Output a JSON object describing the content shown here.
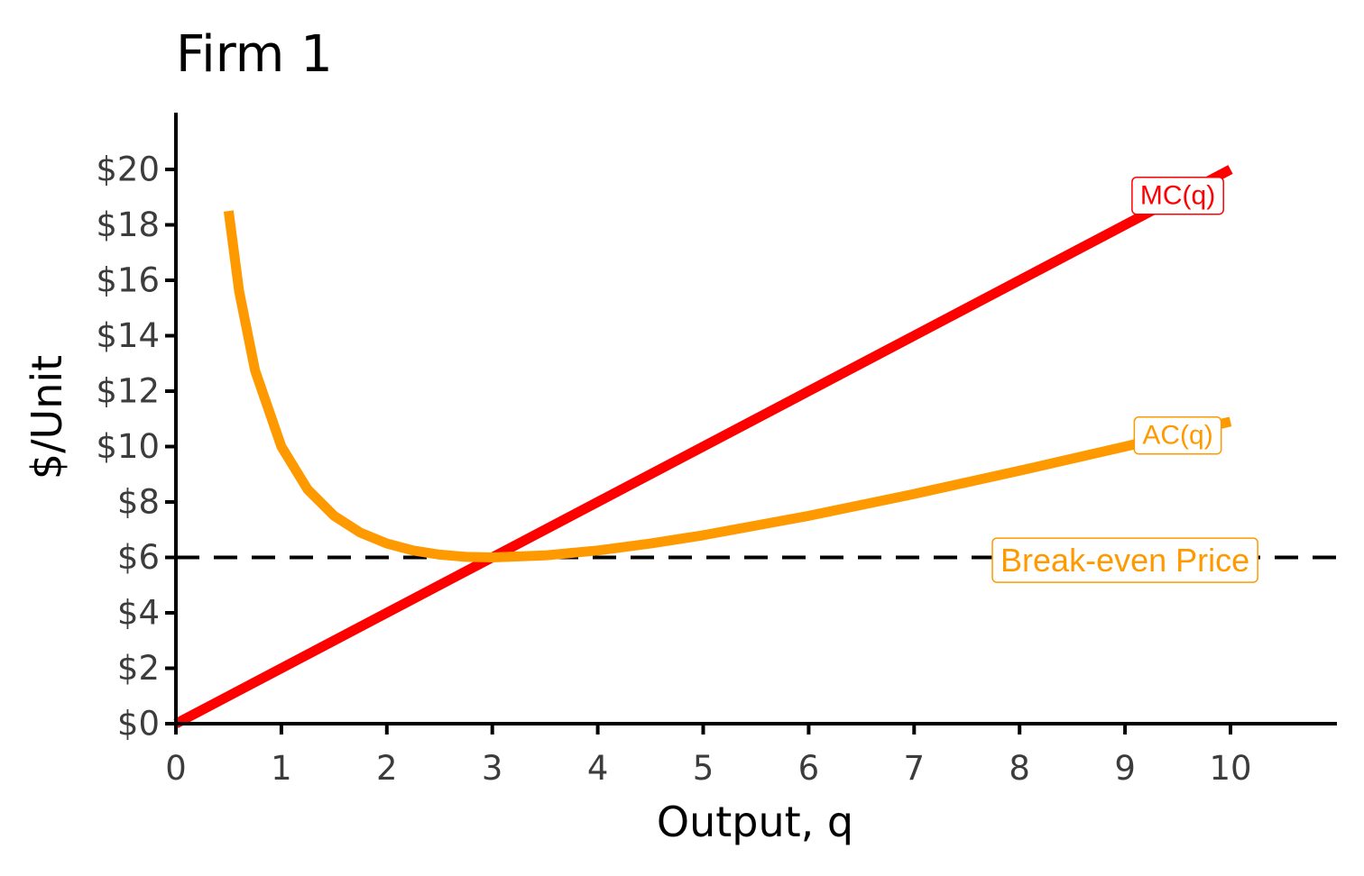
{
  "chart_data": {
    "type": "line",
    "title": "Firm 1",
    "xlabel": "Output, q",
    "ylabel": "$/Unit",
    "xlim": [
      0,
      11
    ],
    "ylim": [
      0,
      22
    ],
    "x_ticks": [
      0,
      1,
      2,
      3,
      4,
      5,
      6,
      7,
      8,
      9,
      10
    ],
    "x_tick_labels": [
      "0",
      "1",
      "2",
      "3",
      "4",
      "5",
      "6",
      "7",
      "8",
      "9",
      "10"
    ],
    "y_ticks": [
      0,
      2,
      4,
      6,
      8,
      10,
      12,
      14,
      16,
      18,
      20
    ],
    "y_tick_labels": [
      "$0",
      "$2",
      "$4",
      "$6",
      "$8",
      "$10",
      "$12",
      "$14",
      "$16",
      "$18",
      "$20"
    ],
    "grid": false,
    "series": [
      {
        "name": "MC(q)",
        "color": "#ff0000",
        "points": [
          [
            0,
            0
          ],
          [
            10,
            20
          ]
        ]
      },
      {
        "name": "AC(q)",
        "color": "#ff9900",
        "points": [
          [
            0.5,
            18.5
          ],
          [
            0.6,
            15.6
          ],
          [
            0.75,
            12.75
          ],
          [
            1,
            10
          ],
          [
            1.25,
            8.45
          ],
          [
            1.5,
            7.5
          ],
          [
            1.75,
            6.89
          ],
          [
            2,
            6.5
          ],
          [
            2.25,
            6.25
          ],
          [
            2.5,
            6.1
          ],
          [
            2.75,
            6.02
          ],
          [
            3,
            6
          ],
          [
            3.5,
            6.07
          ],
          [
            4,
            6.25
          ],
          [
            4.5,
            6.5
          ],
          [
            5,
            6.8
          ],
          [
            6,
            7.5
          ],
          [
            7,
            8.29
          ],
          [
            8,
            9.13
          ],
          [
            9,
            10
          ],
          [
            10,
            10.9
          ]
        ]
      }
    ],
    "reference_lines": [
      {
        "name": "Break-even Price",
        "y": 6,
        "style": "dashed",
        "color": "#000000",
        "label_color": "#ff9900"
      }
    ]
  }
}
